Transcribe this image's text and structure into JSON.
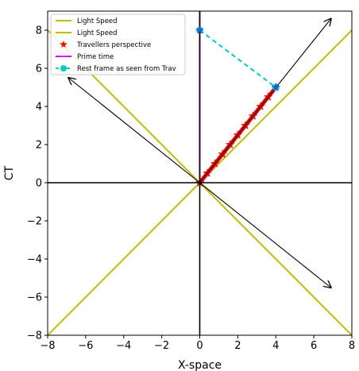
{
  "chart_data": {
    "type": "line",
    "xlabel": "X-space",
    "ylabel": "CT",
    "xlim": [
      -8,
      8
    ],
    "ylim": [
      -8,
      9
    ],
    "xticks": [
      -8,
      -6,
      -4,
      -2,
      0,
      2,
      4,
      6,
      8
    ],
    "yticks": [
      -8,
      -6,
      -4,
      -2,
      0,
      2,
      4,
      6,
      8
    ],
    "grid": false,
    "legend_position": "upper-left",
    "series": [
      {
        "name": "Light Speed",
        "kind": "line",
        "color": "#bfbf00",
        "points": [
          [
            -8,
            -8
          ],
          [
            8,
            8
          ]
        ]
      },
      {
        "name": "Light Speed",
        "kind": "line",
        "color": "#bfbf00",
        "points": [
          [
            -8,
            8
          ],
          [
            8,
            -8
          ]
        ]
      },
      {
        "name": "Travellers perspective",
        "kind": "markers",
        "marker": "star",
        "color": "#ff0000",
        "points": [
          [
            0,
            0
          ],
          [
            0.4,
            0.5
          ],
          [
            0.8,
            1.0
          ],
          [
            1.2,
            1.5
          ],
          [
            1.6,
            2.0
          ],
          [
            2.0,
            2.5
          ],
          [
            2.4,
            3.0
          ],
          [
            2.8,
            3.5
          ],
          [
            3.2,
            4.0
          ],
          [
            3.6,
            4.5
          ],
          [
            4.0,
            5.0
          ]
        ]
      },
      {
        "name": "Prime time",
        "kind": "line",
        "color": "#e000e0",
        "points": [
          [
            0,
            0
          ],
          [
            0,
            9
          ]
        ]
      },
      {
        "name": "Rest frame as seen from Trav",
        "kind": "dashed-markers",
        "color": "#00cccc",
        "points": [
          [
            0,
            8
          ],
          [
            4,
            5
          ]
        ]
      }
    ],
    "reference_lines": [
      {
        "color": "#000000",
        "points": [
          [
            -8,
            0
          ],
          [
            8,
            0
          ]
        ]
      },
      {
        "color": "#000000",
        "points": [
          [
            0,
            -8
          ],
          [
            0,
            9
          ]
        ]
      }
    ],
    "arrows": [
      {
        "from": [
          0,
          0
        ],
        "to": [
          6.9,
          8.6
        ]
      },
      {
        "from": [
          0,
          0
        ],
        "to": [
          -6.9,
          5.5
        ]
      },
      {
        "from": [
          0,
          0
        ],
        "to": [
          6.9,
          -5.5
        ]
      }
    ],
    "blue_points": [
      [
        0,
        8
      ],
      [
        4,
        5
      ]
    ]
  }
}
